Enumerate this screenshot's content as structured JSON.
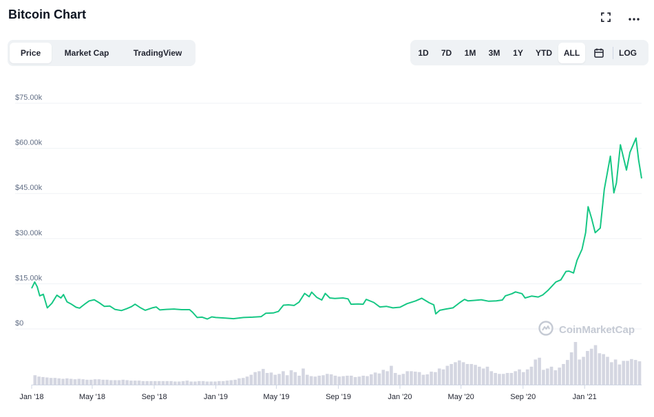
{
  "header": {
    "title": "Bitcoin Chart",
    "fullscreen_icon": "expand-icon",
    "more_icon": "more-icon"
  },
  "view_tabs": {
    "active": "Price",
    "items": [
      "Price",
      "Market Cap",
      "TradingView"
    ]
  },
  "range_tabs": {
    "active": "ALL",
    "items": [
      "1D",
      "7D",
      "1M",
      "3M",
      "1Y",
      "YTD",
      "ALL"
    ],
    "calendar_icon": "calendar-icon",
    "log_label": "LOG"
  },
  "watermark": {
    "text": "CoinMarketCap",
    "icon": "coinmarketcap-logo-icon"
  },
  "colors": {
    "line": "#16c784",
    "volume": "#d4d6e1",
    "grid": "#eff2f5",
    "accent_bg": "#eff2f5"
  },
  "chart_data": {
    "type": "line",
    "grid": true,
    "y_ticks": [
      "$0",
      "$15.00k",
      "$30.00k",
      "$45.00k",
      "$60.00k",
      "$75.00k"
    ],
    "ylim": [
      0,
      75000
    ],
    "x_ticks": [
      "Jan '18",
      "May '18",
      "Sep '18",
      "Jan '19",
      "May '19",
      "Sep '19",
      "Jan '20",
      "May '20",
      "Sep '20",
      "Jan '21"
    ],
    "x_tick_dates": [
      "2018-01-01",
      "2018-05-01",
      "2018-09-01",
      "2019-01-01",
      "2019-05-01",
      "2019-09-01",
      "2020-01-01",
      "2020-05-01",
      "2020-09-01",
      "2021-01-01"
    ],
    "xlim": [
      "2018-01-01",
      "2021-04-24"
    ],
    "series": [
      {
        "values": [
          [
            "2018-01-01",
            13500
          ],
          [
            "2018-01-07",
            15600
          ],
          [
            "2018-01-12",
            14000
          ],
          [
            "2018-01-17",
            11000
          ],
          [
            "2018-01-24",
            11500
          ],
          [
            "2018-02-01",
            7000
          ],
          [
            "2018-02-10",
            8500
          ],
          [
            "2018-02-20",
            11200
          ],
          [
            "2018-02-28",
            10300
          ],
          [
            "2018-03-05",
            11400
          ],
          [
            "2018-03-12",
            9000
          ],
          [
            "2018-03-20",
            8300
          ],
          [
            "2018-03-30",
            7200
          ],
          [
            "2018-04-06",
            6900
          ],
          [
            "2018-04-15",
            8100
          ],
          [
            "2018-04-25",
            9300
          ],
          [
            "2018-05-05",
            9700
          ],
          [
            "2018-05-15",
            8700
          ],
          [
            "2018-05-25",
            7500
          ],
          [
            "2018-06-05",
            7600
          ],
          [
            "2018-06-15",
            6500
          ],
          [
            "2018-06-28",
            6100
          ],
          [
            "2018-07-08",
            6700
          ],
          [
            "2018-07-18",
            7400
          ],
          [
            "2018-07-25",
            8200
          ],
          [
            "2018-08-05",
            7000
          ],
          [
            "2018-08-14",
            6200
          ],
          [
            "2018-08-28",
            7000
          ],
          [
            "2018-09-05",
            7300
          ],
          [
            "2018-09-12",
            6300
          ],
          [
            "2018-09-25",
            6500
          ],
          [
            "2018-10-10",
            6600
          ],
          [
            "2018-10-25",
            6400
          ],
          [
            "2018-11-10",
            6400
          ],
          [
            "2018-11-16",
            5500
          ],
          [
            "2018-11-25",
            3800
          ],
          [
            "2018-12-05",
            3900
          ],
          [
            "2018-12-15",
            3300
          ],
          [
            "2018-12-24",
            4000
          ],
          [
            "2019-01-01",
            3800
          ],
          [
            "2019-01-20",
            3600
          ],
          [
            "2019-02-05",
            3400
          ],
          [
            "2019-02-25",
            3800
          ],
          [
            "2019-03-15",
            3900
          ],
          [
            "2019-04-01",
            4100
          ],
          [
            "2019-04-10",
            5200
          ],
          [
            "2019-04-25",
            5300
          ],
          [
            "2019-05-05",
            5800
          ],
          [
            "2019-05-15",
            7900
          ],
          [
            "2019-05-25",
            8000
          ],
          [
            "2019-06-05",
            7800
          ],
          [
            "2019-06-15",
            8900
          ],
          [
            "2019-06-26",
            11800
          ],
          [
            "2019-07-05",
            10700
          ],
          [
            "2019-07-10",
            12200
          ],
          [
            "2019-07-20",
            10500
          ],
          [
            "2019-07-30",
            9600
          ],
          [
            "2019-08-06",
            11800
          ],
          [
            "2019-08-15",
            10300
          ],
          [
            "2019-08-25",
            10100
          ],
          [
            "2019-09-10",
            10300
          ],
          [
            "2019-09-20",
            10000
          ],
          [
            "2019-09-26",
            8200
          ],
          [
            "2019-10-10",
            8300
          ],
          [
            "2019-10-20",
            8200
          ],
          [
            "2019-10-26",
            9800
          ],
          [
            "2019-11-10",
            8800
          ],
          [
            "2019-11-22",
            7300
          ],
          [
            "2019-12-05",
            7500
          ],
          [
            "2019-12-18",
            7000
          ],
          [
            "2020-01-01",
            7200
          ],
          [
            "2020-01-15",
            8400
          ],
          [
            "2020-02-01",
            9300
          ],
          [
            "2020-02-13",
            10200
          ],
          [
            "2020-02-28",
            8700
          ],
          [
            "2020-03-08",
            8000
          ],
          [
            "2020-03-12",
            5000
          ],
          [
            "2020-03-20",
            6200
          ],
          [
            "2020-04-01",
            6600
          ],
          [
            "2020-04-15",
            7000
          ],
          [
            "2020-04-29",
            8800
          ],
          [
            "2020-05-08",
            9800
          ],
          [
            "2020-05-15",
            9300
          ],
          [
            "2020-05-28",
            9500
          ],
          [
            "2020-06-10",
            9700
          ],
          [
            "2020-06-25",
            9200
          ],
          [
            "2020-07-10",
            9300
          ],
          [
            "2020-07-22",
            9600
          ],
          [
            "2020-07-28",
            11000
          ],
          [
            "2020-08-10",
            11700
          ],
          [
            "2020-08-17",
            12300
          ],
          [
            "2020-08-30",
            11700
          ],
          [
            "2020-09-05",
            10300
          ],
          [
            "2020-09-18",
            10900
          ],
          [
            "2020-10-01",
            10600
          ],
          [
            "2020-10-10",
            11300
          ],
          [
            "2020-10-21",
            12900
          ],
          [
            "2020-11-05",
            15600
          ],
          [
            "2020-11-15",
            16300
          ],
          [
            "2020-11-25",
            19100
          ],
          [
            "2020-12-01",
            19200
          ],
          [
            "2020-12-10",
            18600
          ],
          [
            "2020-12-17",
            22800
          ],
          [
            "2020-12-27",
            26500
          ],
          [
            "2021-01-03",
            32000
          ],
          [
            "2021-01-08",
            40600
          ],
          [
            "2021-01-15",
            36700
          ],
          [
            "2021-01-22",
            32000
          ],
          [
            "2021-02-01",
            33500
          ],
          [
            "2021-02-09",
            46400
          ],
          [
            "2021-02-21",
            57400
          ],
          [
            "2021-02-28",
            45200
          ],
          [
            "2021-03-05",
            48500
          ],
          [
            "2021-03-13",
            61200
          ],
          [
            "2021-03-25",
            52800
          ],
          [
            "2021-04-01",
            58700
          ],
          [
            "2021-04-13",
            63400
          ],
          [
            "2021-04-18",
            56200
          ],
          [
            "2021-04-24",
            50000
          ]
        ]
      }
    ],
    "volume": [
      21,
      18,
      17,
      16,
      15,
      15,
      14,
      13,
      14,
      13,
      12,
      13,
      12,
      11,
      11,
      12,
      12,
      11,
      11,
      10,
      10,
      10,
      11,
      10,
      9,
      9,
      9,
      8,
      8,
      8,
      8,
      8,
      8,
      8,
      8,
      7,
      7,
      8,
      9,
      7,
      7,
      8,
      8,
      7,
      7,
      7,
      8,
      8,
      9,
      10,
      11,
      14,
      15,
      18,
      22,
      28,
      30,
      35,
      26,
      27,
      22,
      24,
      30,
      21,
      32,
      28,
      20,
      36,
      22,
      19,
      18,
      20,
      21,
      24,
      23,
      20,
      18,
      19,
      20,
      20,
      17,
      18,
      20,
      19,
      23,
      27,
      25,
      33,
      30,
      42,
      26,
      22,
      24,
      30,
      30,
      29,
      28,
      22,
      23,
      29,
      28,
      36,
      34,
      42,
      46,
      50,
      54,
      50,
      46,
      46,
      44,
      40,
      36,
      40,
      30,
      26,
      24,
      24,
      26,
      26,
      30,
      34,
      28,
      34,
      40,
      56,
      60,
      33,
      36,
      40,
      32,
      38,
      46,
      55,
      72,
      95,
      56,
      62,
      75,
      80,
      88,
      70,
      68,
      62,
      50,
      56,
      45,
      53,
      53,
      57,
      55,
      52
    ]
  }
}
